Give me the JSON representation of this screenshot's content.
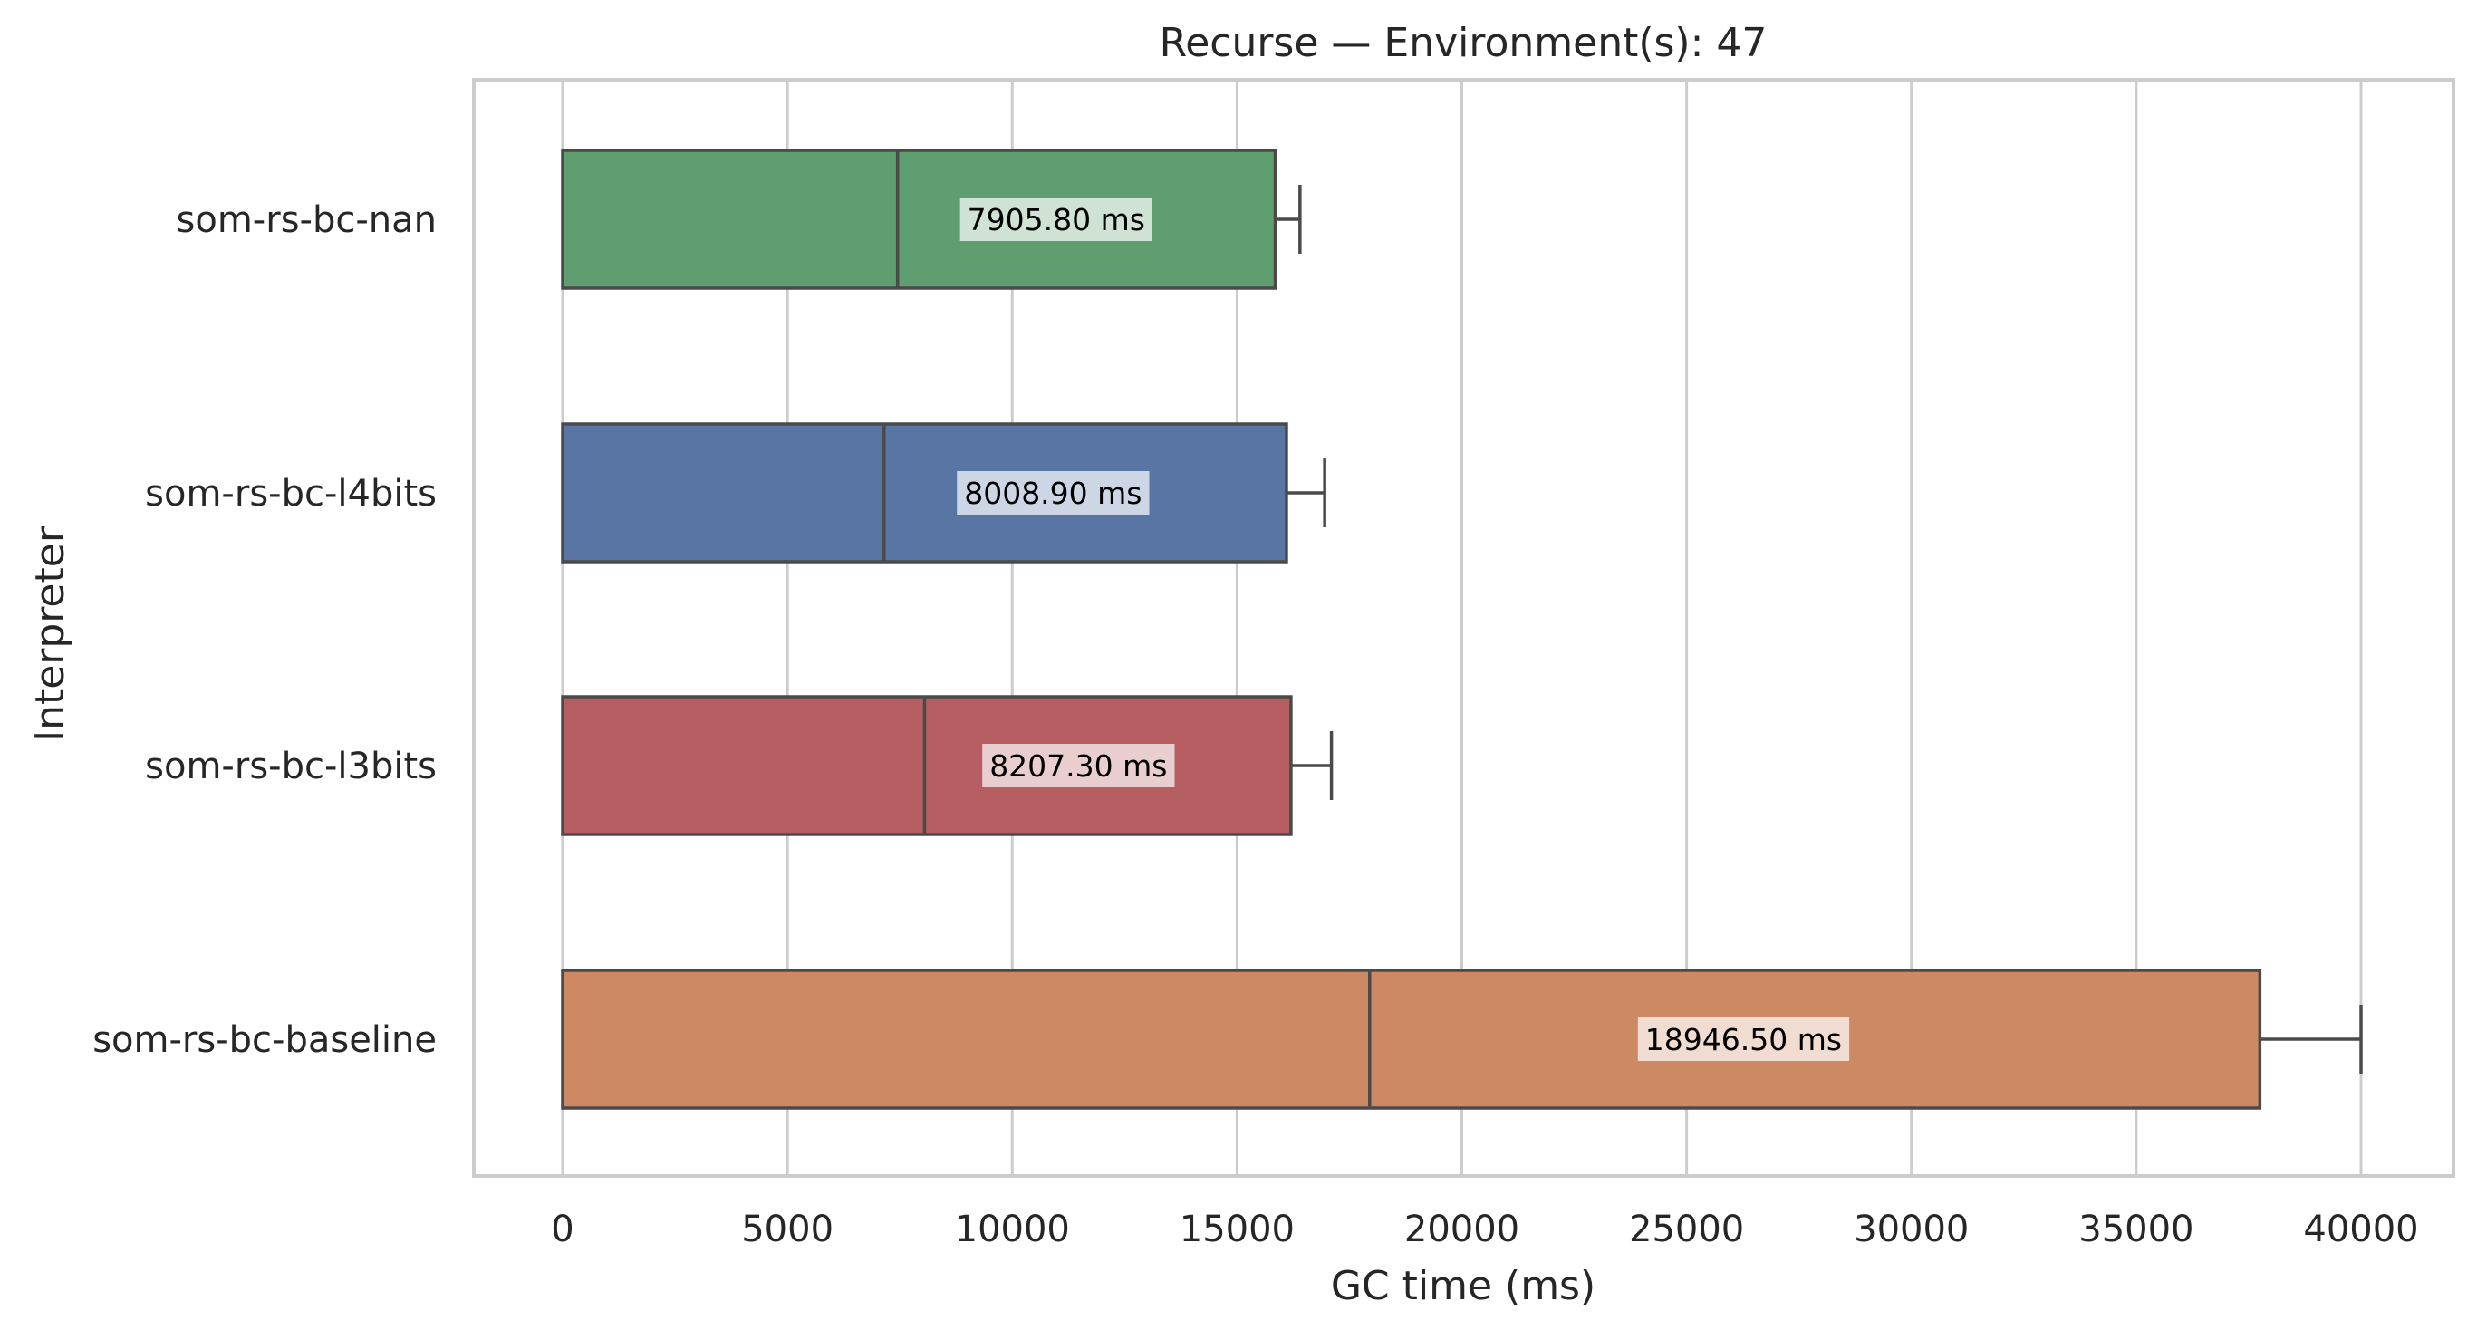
{
  "chart_data": {
    "type": "box",
    "orientation": "horizontal",
    "title": "Recurse — Environment(s): 47",
    "xlabel": "GC time (ms)",
    "ylabel": "Interpreter",
    "xlim": [
      -2000,
      42000
    ],
    "xticks": [
      0,
      5000,
      10000,
      15000,
      20000,
      25000,
      30000,
      35000,
      40000
    ],
    "xtick_labels": [
      "0",
      "5000",
      "10000",
      "15000",
      "20000",
      "25000",
      "30000",
      "35000",
      "40000"
    ],
    "grid": "vertical",
    "categories": [
      "som-rs-bc-nan",
      "som-rs-bc-l4bits",
      "som-rs-bc-l3bits",
      "som-rs-bc-baseline"
    ],
    "series": [
      {
        "category": "som-rs-bc-nan",
        "q1": 0,
        "median": 7450,
        "q3": 15850,
        "whisker_high": 16400,
        "label": "7905.80 ms",
        "color": "#5f9e6e"
      },
      {
        "category": "som-rs-bc-l4bits",
        "q1": 0,
        "median": 7150,
        "q3": 16100,
        "whisker_high": 16950,
        "label": "8008.90 ms",
        "color": "#5975a4"
      },
      {
        "category": "som-rs-bc-l3bits",
        "q1": 0,
        "median": 8050,
        "q3": 16200,
        "whisker_high": 17100,
        "label": "8207.30 ms",
        "color": "#b55d60"
      },
      {
        "category": "som-rs-bc-baseline",
        "q1": 0,
        "median": 17950,
        "q3": 37750,
        "whisker_high": 40000,
        "label": "18946.50 ms",
        "color": "#cc8963"
      }
    ],
    "colors": {
      "box_edge": "#4a4a4a",
      "grid": "#cccccc",
      "frame": "#cccccc",
      "label_bg": "#ffffff"
    }
  }
}
